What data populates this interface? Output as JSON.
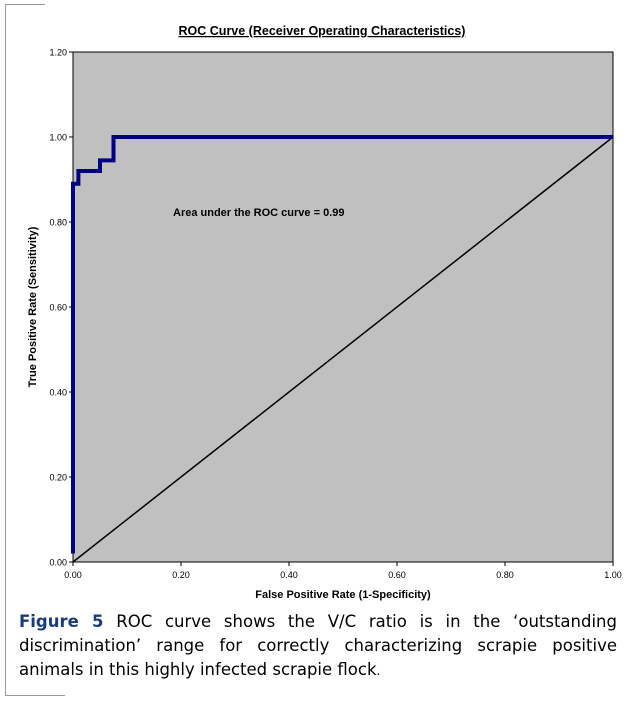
{
  "chart_data": {
    "type": "line",
    "title": "ROC Curve (Receiver Operating Characteristics)",
    "xlabel": "False Positive Rate (1-Specificity)",
    "ylabel": "True Positive Rate (Sensitivity)",
    "xlim": [
      0,
      1.0
    ],
    "ylim": [
      0,
      1.2
    ],
    "x_ticks": [
      "0.00",
      "0.20",
      "0.40",
      "0.60",
      "0.80",
      "1.00"
    ],
    "y_ticks": [
      "0.00",
      "0.20",
      "0.40",
      "0.60",
      "0.80",
      "1.00",
      "1.20"
    ],
    "annotation": "Area under the ROC curve = 0.99",
    "grid": false,
    "plot_background": "#c0c0c0",
    "series": [
      {
        "color": "#000080",
        "x": [
          0.0,
          0.0,
          0.0,
          0.01,
          0.01,
          0.025,
          0.05,
          0.05,
          0.063,
          0.075,
          0.075,
          1.0
        ],
        "y": [
          0.02,
          0.89,
          0.89,
          0.89,
          0.92,
          0.92,
          0.92,
          0.945,
          0.945,
          0.945,
          1.0,
          1.0
        ]
      },
      {
        "color": "#000000",
        "x": [
          0.0,
          1.0
        ],
        "y": [
          0.0,
          1.0
        ]
      }
    ]
  },
  "caption": {
    "lead": "Figure 5",
    "text": " ROC curve shows the V/C ratio is in the ‘outstanding discrimination’ range for correctly characterizing scrapie positive animals in this highly infected scrapie flock",
    "end": "."
  }
}
